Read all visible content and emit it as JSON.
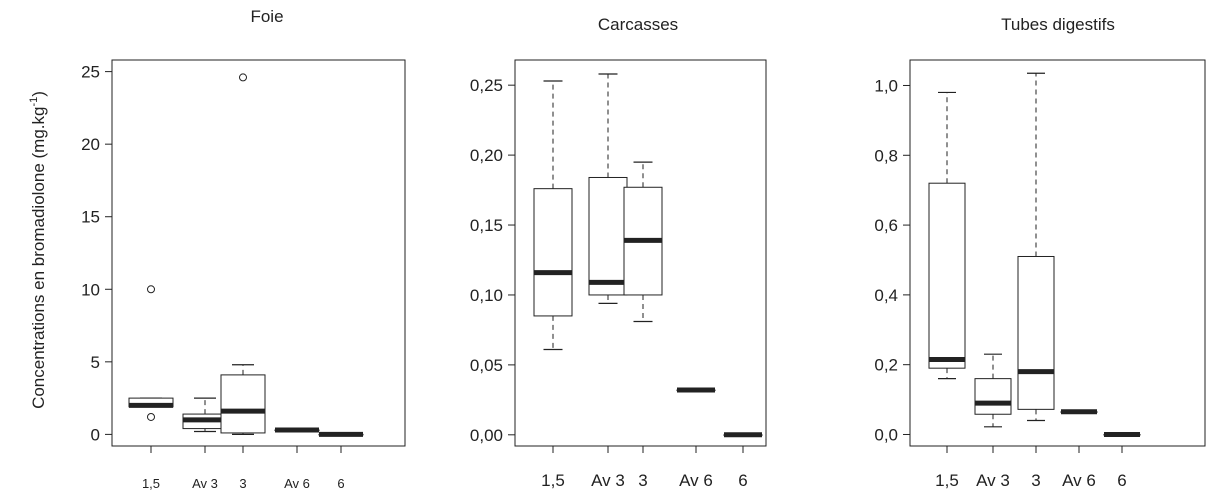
{
  "figure": {
    "ylabel_main": "Concentrations en bromadiolone (mg.kg",
    "ylabel_sup": "-1",
    "ylabel_close": ")"
  },
  "chart_data": [
    {
      "type": "box",
      "title": "Foie",
      "categories": [
        "1,5",
        "Av 3",
        "3",
        "Av 6",
        "6"
      ],
      "yticks": [
        "0",
        "5",
        "10",
        "15",
        "20",
        "25"
      ],
      "ylim": [
        -0.8,
        25.8
      ],
      "boxes": [
        {
          "low": 1.9,
          "q1": 1.9,
          "median": 2.0,
          "q3": 2.5,
          "high": 2.5,
          "outliers": [
            10.0,
            1.2
          ]
        },
        {
          "low": 0.2,
          "q1": 0.4,
          "median": 1.0,
          "q3": 1.4,
          "high": 2.5,
          "outliers": []
        },
        {
          "low": 0.0,
          "q1": 0.1,
          "median": 1.6,
          "q3": 4.1,
          "high": 4.8,
          "outliers": [
            24.6
          ]
        },
        {
          "low": 0.3,
          "q1": 0.3,
          "median": 0.3,
          "q3": 0.3,
          "high": 0.3,
          "outliers": []
        },
        {
          "low": 0.0,
          "q1": 0.0,
          "median": 0.0,
          "q3": 0.0,
          "high": 0.0,
          "outliers": []
        }
      ]
    },
    {
      "type": "box",
      "title": "Carcasses",
      "categories": [
        "1,5",
        "Av 3",
        "3",
        "Av 6",
        "6"
      ],
      "yticks": [
        "0,00",
        "0,05",
        "0,10",
        "0,15",
        "0,20",
        "0,25"
      ],
      "ylim": [
        -0.008,
        0.268
      ],
      "boxes": [
        {
          "low": 0.061,
          "q1": 0.085,
          "median": 0.116,
          "q3": 0.176,
          "high": 0.253,
          "outliers": []
        },
        {
          "low": 0.094,
          "q1": 0.1,
          "median": 0.109,
          "q3": 0.184,
          "high": 0.258,
          "outliers": []
        },
        {
          "low": 0.081,
          "q1": 0.1,
          "median": 0.139,
          "q3": 0.177,
          "high": 0.195,
          "outliers": []
        },
        {
          "low": 0.032,
          "q1": 0.032,
          "median": 0.032,
          "q3": 0.032,
          "high": 0.032,
          "outliers": []
        },
        {
          "low": 0.0,
          "q1": 0.0,
          "median": 0.0,
          "q3": 0.0,
          "high": 0.0,
          "outliers": []
        }
      ]
    },
    {
      "type": "box",
      "title": "Tubes digestifs",
      "categories": [
        "1,5",
        "Av 3",
        "3",
        "Av 6",
        "6"
      ],
      "yticks": [
        "0,0",
        "0,2",
        "0,4",
        "0,6",
        "0,8",
        "1,0"
      ],
      "ylim": [
        -0.033,
        1.073
      ],
      "boxes": [
        {
          "low": 0.16,
          "q1": 0.19,
          "median": 0.215,
          "q3": 0.72,
          "high": 0.98,
          "outliers": []
        },
        {
          "low": 0.022,
          "q1": 0.058,
          "median": 0.09,
          "q3": 0.16,
          "high": 0.23,
          "outliers": []
        },
        {
          "low": 0.04,
          "q1": 0.072,
          "median": 0.18,
          "q3": 0.51,
          "high": 1.035,
          "outliers": []
        },
        {
          "low": 0.065,
          "q1": 0.065,
          "median": 0.065,
          "q3": 0.065,
          "high": 0.065,
          "outliers": []
        },
        {
          "low": 0.0,
          "q1": 0.0,
          "median": 0.0,
          "q3": 0.0,
          "high": 0.0,
          "outliers": []
        }
      ]
    }
  ]
}
